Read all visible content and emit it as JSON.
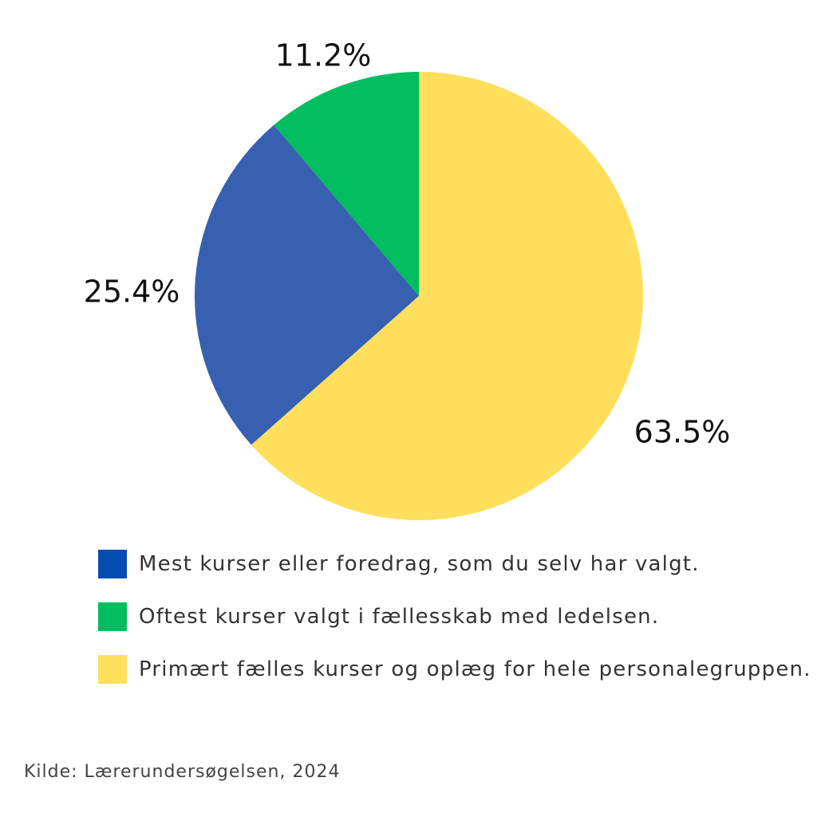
{
  "chart_data": {
    "type": "pie",
    "title": "",
    "slices": [
      {
        "label": "Mest kurser eller foredrag, som du selv har valgt.",
        "value": 25.4,
        "display": "25.4%",
        "color": "#3761B0"
      },
      {
        "label": "Oftest kurser valgt i fællesskab med ledelsen.",
        "value": 11.2,
        "display": "11.2%",
        "color": "#00BE5F"
      },
      {
        "label": "Primært fælles kurser og oplæg for hele personalegruppen.",
        "value": 63.5,
        "display": "63.5%",
        "color": "#FFDF5C"
      }
    ],
    "legend": {
      "placement": "bottom",
      "items": [
        {
          "label": "Mest kurser eller foredrag, som du selv har valgt.",
          "color": "#034CB2"
        },
        {
          "label": "Oftest kurser valgt i fællesskab med ledelsen.",
          "color": "#00BE5F"
        },
        {
          "label": "Primært fælles kurser og oplæg for hele personalegruppen.",
          "color": "#FFDF5C"
        }
      ]
    },
    "source": "Kilde: Lærerundersøgelsen, 2024"
  }
}
